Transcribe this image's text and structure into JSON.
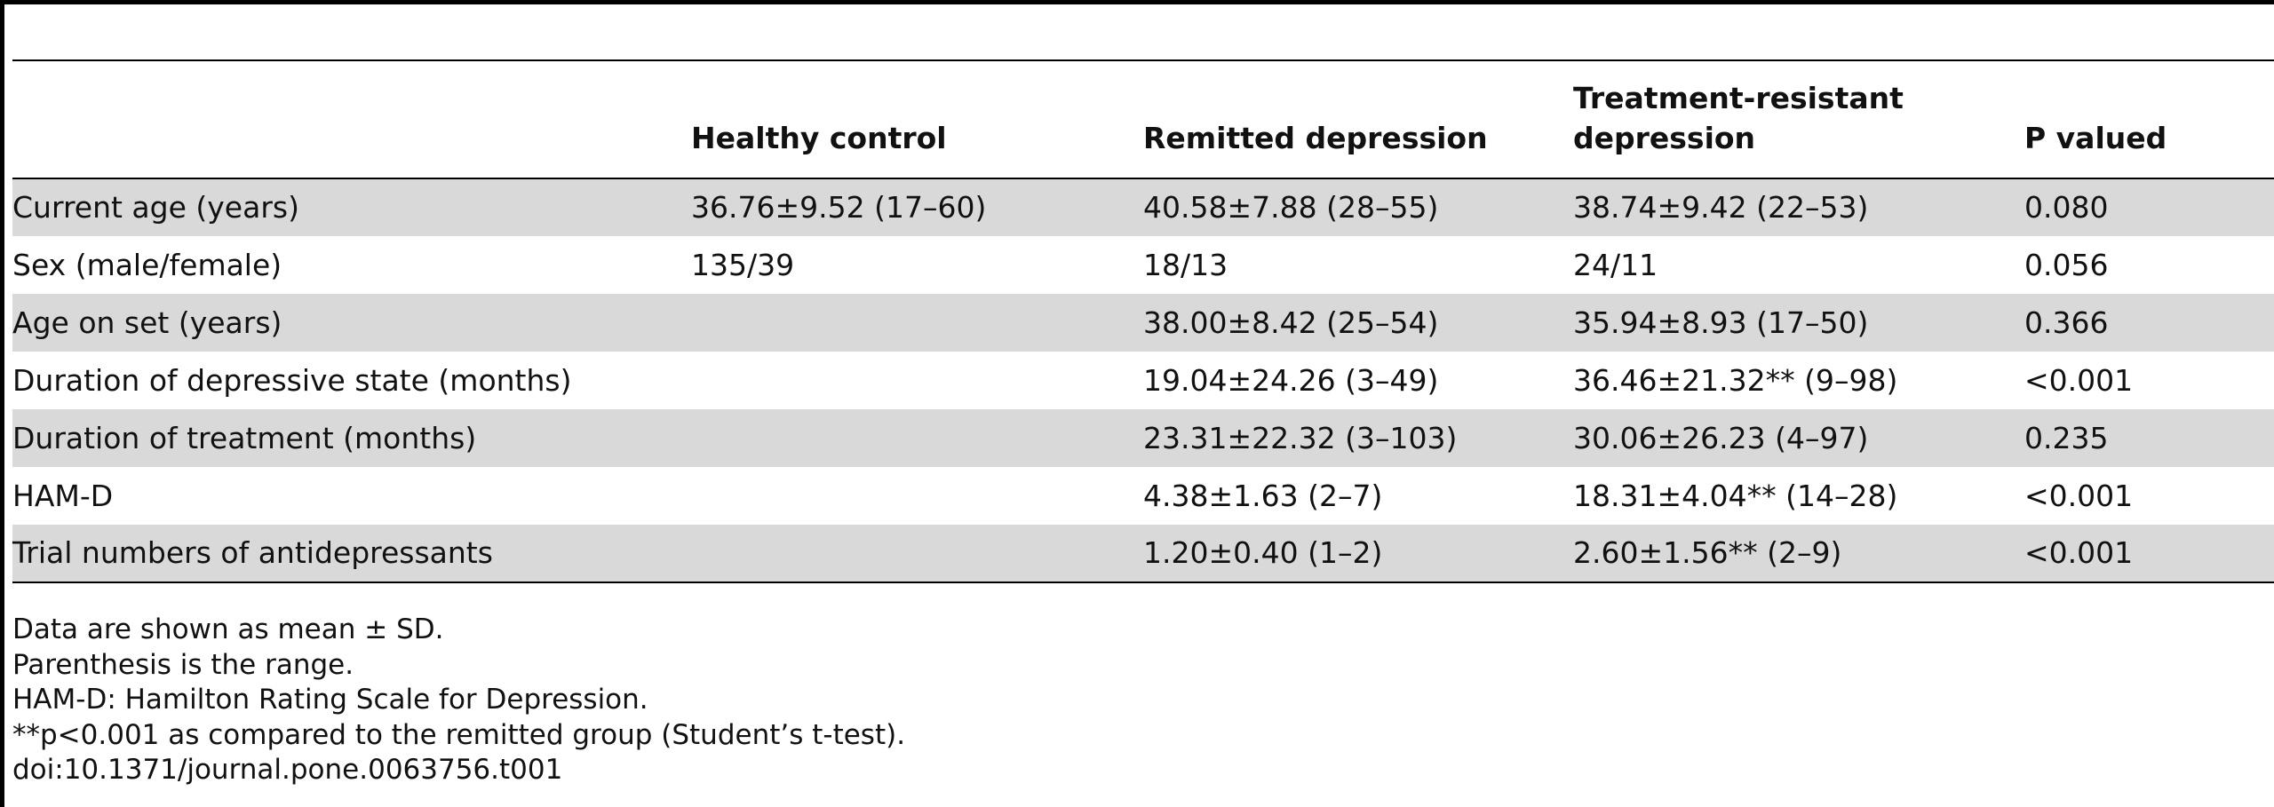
{
  "table": {
    "headers": [
      "",
      "Healthy control",
      "Remitted depression",
      "Treatment-resistant depression",
      "P valued"
    ],
    "rows": [
      {
        "label": "Current age (years)",
        "healthy": "36.76±9.52 (17–60)",
        "remitted": "40.58±7.88 (28–55)",
        "resistant": "38.74±9.42 (22–53)",
        "p": "0.080"
      },
      {
        "label": "Sex (male/female)",
        "healthy": "135/39",
        "remitted": "18/13",
        "resistant": "24/11",
        "p": "0.056"
      },
      {
        "label": "Age on set (years)",
        "healthy": "",
        "remitted": "38.00±8.42 (25–54)",
        "resistant": "35.94±8.93 (17–50)",
        "p": "0.366"
      },
      {
        "label": "Duration of depressive state (months)",
        "healthy": "",
        "remitted": "19.04±24.26 (3–49)",
        "resistant": "36.46±21.32** (9–98)",
        "p": "<0.001"
      },
      {
        "label": "Duration of treatment (months)",
        "healthy": "",
        "remitted": "23.31±22.32 (3–103)",
        "resistant": "30.06±26.23 (4–97)",
        "p": "0.235"
      },
      {
        "label": "HAM-D",
        "healthy": "",
        "remitted": "4.38±1.63 (2–7)",
        "resistant": "18.31±4.04** (14–28)",
        "p": "<0.001"
      },
      {
        "label": "Trial numbers of antidepressants",
        "healthy": "",
        "remitted": "1.20±0.40 (1–2)",
        "resistant": "2.60±1.56** (2–9)",
        "p": "<0.001"
      }
    ]
  },
  "notes": [
    "Data are shown as mean ± SD.",
    "Parenthesis is the range.",
    "HAM-D: Hamilton Rating Scale for Depression.",
    "**p<0.001 as compared to the remitted group (Student’s t-test).",
    "doi:10.1371/journal.pone.0063756.t001"
  ],
  "colors": {
    "row_shade": "#d9d9d9",
    "rule": "#000000"
  }
}
